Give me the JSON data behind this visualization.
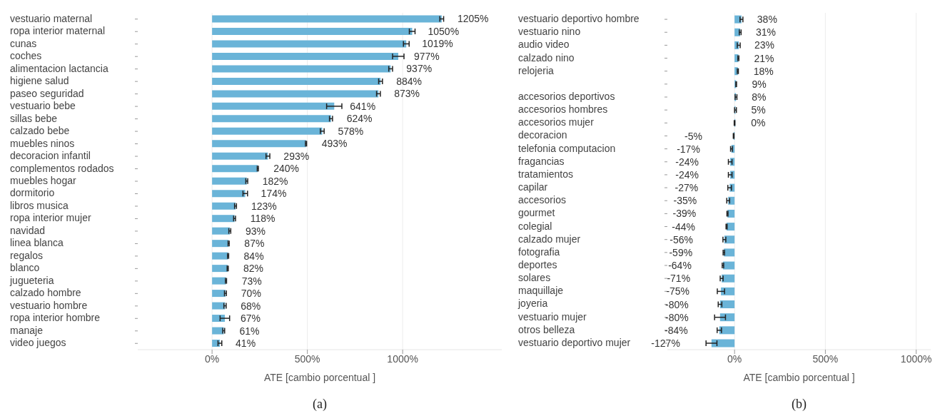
{
  "chart_data": [
    {
      "type": "bar",
      "orientation": "horizontal",
      "xlabel": "ATE [cambio porcentual ]",
      "annotations": [
        "(a)"
      ],
      "grid": "x",
      "color": "#6ab4d8",
      "categories": [
        "vestuario maternal",
        "ropa interior maternal",
        "cunas",
        "coches",
        "alimentacion lactancia",
        "higiene salud",
        "paseo seguridad",
        "vestuario bebe",
        "sillas bebe",
        "calzado bebe",
        "muebles ninos",
        "decoracion infantil",
        "complementos rodados",
        "muebles hogar",
        "dormitorio",
        "libros musica",
        "ropa interior mujer",
        "navidad",
        "linea blanca",
        "regalos",
        "blanco",
        "jugueteria",
        "calzado hombre",
        "vestuario hombre",
        "ropa interior hombre",
        "manaje",
        "video juegos"
      ],
      "values": [
        1205,
        1050,
        1019,
        977,
        937,
        884,
        873,
        641,
        624,
        578,
        493,
        293,
        240,
        182,
        174,
        123,
        118,
        93,
        87,
        84,
        82,
        73,
        70,
        68,
        67,
        61,
        41
      ],
      "errors": [
        10,
        15,
        15,
        30,
        10,
        10,
        10,
        40,
        8,
        10,
        3,
        10,
        3,
        5,
        12,
        5,
        5,
        5,
        3,
        3,
        3,
        3,
        5,
        6,
        25,
        5,
        10
      ],
      "value_labels": [
        "1205%",
        "1050%",
        "1019%",
        "977%",
        "937%",
        "884%",
        "873%",
        "641%",
        "624%",
        "578%",
        "493%",
        "293%",
        "240%",
        "182%",
        "174%",
        "123%",
        "118%",
        "93%",
        "87%",
        "84%",
        "82%",
        "73%",
        "70%",
        "68%",
        "67%",
        "61%",
        "41%"
      ],
      "xlim": [
        -390,
        1520
      ],
      "xticks": [
        {
          "value": 0,
          "label": "0%"
        },
        {
          "value": 500,
          "label": "500%"
        },
        {
          "value": 1000,
          "label": "1000%"
        }
      ]
    },
    {
      "type": "bar",
      "orientation": "horizontal",
      "xlabel": "ATE [cambio porcentual ]",
      "annotations": [
        "(b)"
      ],
      "grid": "x",
      "color": "#6ab4d8",
      "categories": [
        "vestuario deportivo hombre",
        "vestuario nino",
        "audio video",
        "calzado nino",
        "relojeria",
        null,
        "accesorios deportivos",
        "accesorios hombres",
        "accesorios mujer",
        "decoracion",
        "telefonia computacion",
        "fragancias",
        "tratamientos",
        "capilar",
        "accesorios",
        "gourmet",
        "colegial",
        "calzado mujer",
        "fotografia",
        "deportes",
        "solares",
        "maquillaje",
        "joyeria",
        "vestuario mujer",
        "otros belleza",
        "vestuario deportivo mujer"
      ],
      "values": [
        38,
        31,
        23,
        21,
        18,
        9,
        8,
        5,
        0,
        -5,
        -17,
        -24,
        -24,
        -27,
        -35,
        -39,
        -44,
        -56,
        -59,
        -64,
        -71,
        -75,
        -80,
        -80,
        -84,
        -127
      ],
      "errors": [
        8,
        5,
        8,
        3,
        3,
        2,
        5,
        5,
        2,
        2,
        5,
        10,
        10,
        10,
        8,
        3,
        3,
        8,
        4,
        4,
        8,
        20,
        10,
        30,
        12,
        30
      ],
      "value_labels": [
        "38%",
        "31%",
        "23%",
        "21%",
        "18%",
        "9%",
        "8%",
        "5%",
        "0%",
        "-5%",
        "-17%",
        "-24%",
        "-24%",
        "-27%",
        "-35%",
        "-39%",
        "-44%",
        "-56%",
        "-59%",
        "-64%",
        "-71%",
        "-75%",
        "-80%",
        "-80%",
        "-84%",
        "-127%"
      ],
      "xlim": [
        -370,
        1080
      ],
      "xticks": [
        {
          "value": 0,
          "label": "0%"
        },
        {
          "value": 500,
          "label": "500%"
        },
        {
          "value": 1000,
          "label": "1000%"
        }
      ]
    }
  ]
}
